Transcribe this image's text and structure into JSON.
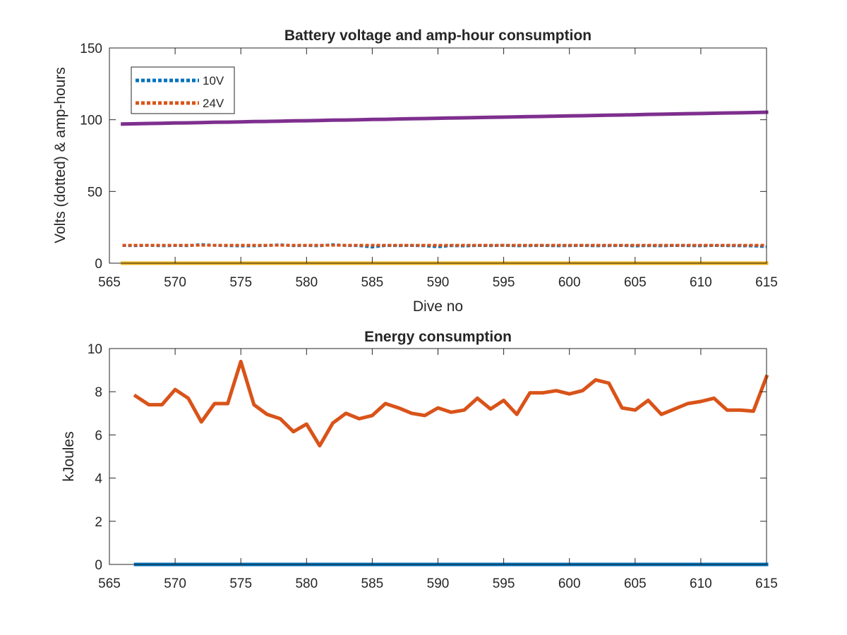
{
  "chart_data": [
    {
      "type": "line",
      "title": "Battery voltage and amp-hour consumption",
      "xlabel": "Dive no",
      "ylabel": "Volts (dotted) & amp-hours",
      "xlim": [
        565,
        615
      ],
      "ylim": [
        0,
        150
      ],
      "xticks": [
        "565",
        "570",
        "575",
        "580",
        "585",
        "590",
        "595",
        "600",
        "605",
        "610",
        "615"
      ],
      "yticks": [
        "0",
        "50",
        "100",
        "150"
      ],
      "grid": false,
      "legend": "top-left",
      "x": [
        566,
        567,
        568,
        569,
        570,
        571,
        572,
        573,
        574,
        575,
        576,
        577,
        578,
        579,
        580,
        581,
        582,
        583,
        584,
        585,
        586,
        587,
        588,
        589,
        590,
        591,
        592,
        593,
        594,
        595,
        596,
        597,
        598,
        599,
        600,
        601,
        602,
        603,
        604,
        605,
        606,
        607,
        608,
        609,
        610,
        611,
        612,
        613,
        614,
        615
      ],
      "series": [
        {
          "name": "10V",
          "style": "dotted",
          "color": "#0072BD",
          "values": [
            12.3,
            12.2,
            12.4,
            12.1,
            12.3,
            12.2,
            13.0,
            12.4,
            12.2,
            12.0,
            12.1,
            12.3,
            12.8,
            12.2,
            12.3,
            12.1,
            12.9,
            12.3,
            12.2,
            11.2,
            12.3,
            12.2,
            12.3,
            12.1,
            11.4,
            12.2,
            12.0,
            12.3,
            12.2,
            12.4,
            12.1,
            12.2,
            12.3,
            12.1,
            12.2,
            12.3,
            12.1,
            12.2,
            12.3,
            12.0,
            12.2,
            12.1,
            12.3,
            12.2,
            12.1,
            12.3,
            12.2,
            12.1,
            12.0,
            11.5
          ]
        },
        {
          "name": "24V",
          "style": "dotted",
          "color": "#D95319",
          "values": [
            12.5,
            12.5,
            12.5,
            12.5,
            12.5,
            12.5,
            12.5,
            12.5,
            12.5,
            12.5,
            12.5,
            12.5,
            12.5,
            12.5,
            12.5,
            12.5,
            12.5,
            12.5,
            12.5,
            12.5,
            12.5,
            12.5,
            12.5,
            12.5,
            12.5,
            12.5,
            12.5,
            12.5,
            12.5,
            12.5,
            12.5,
            12.5,
            12.5,
            12.5,
            12.5,
            12.5,
            12.5,
            12.5,
            12.5,
            12.5,
            12.5,
            12.5,
            12.5,
            12.5,
            12.5,
            12.5,
            12.5,
            12.5,
            12.5,
            12.5
          ]
        },
        {
          "style": "solid",
          "color": "#7E2F8E",
          "values": [
            97.0,
            97.2,
            97.4,
            97.5,
            97.7,
            97.8,
            98.0,
            98.2,
            98.3,
            98.5,
            98.7,
            98.8,
            99.0,
            99.2,
            99.3,
            99.5,
            99.7,
            99.8,
            100.0,
            100.2,
            100.3,
            100.5,
            100.7,
            100.8,
            101.0,
            101.2,
            101.3,
            101.5,
            101.7,
            101.8,
            102.0,
            102.2,
            102.3,
            102.5,
            102.7,
            102.8,
            103.0,
            103.2,
            103.3,
            103.5,
            103.7,
            103.8,
            104.0,
            104.2,
            104.3,
            104.5,
            104.7,
            104.8,
            105.0,
            105.2
          ]
        },
        {
          "style": "solid",
          "color": "#EDB120",
          "values": [
            0,
            0,
            0,
            0,
            0,
            0,
            0,
            0,
            0,
            0,
            0,
            0,
            0,
            0,
            0,
            0,
            0,
            0,
            0,
            0,
            0,
            0,
            0,
            0,
            0,
            0,
            0,
            0,
            0,
            0,
            0,
            0,
            0,
            0,
            0,
            0,
            0,
            0,
            0,
            0,
            0,
            0,
            0,
            0,
            0,
            0,
            0,
            0,
            0,
            0
          ]
        }
      ]
    },
    {
      "type": "line",
      "title": "Energy consumption",
      "xlabel": "",
      "ylabel": "kJoules",
      "xlim": [
        565,
        615
      ],
      "ylim": [
        0,
        10
      ],
      "xticks": [
        "565",
        "570",
        "575",
        "580",
        "585",
        "590",
        "595",
        "600",
        "605",
        "610",
        "615"
      ],
      "yticks": [
        "0",
        "2",
        "4",
        "6",
        "8",
        "10"
      ],
      "grid": false,
      "legend": "none",
      "series": [
        {
          "style": "solid",
          "color": "#0072BD",
          "x": [
            567,
            615
          ],
          "values": [
            0,
            0
          ]
        },
        {
          "style": "solid",
          "color": "#D95319",
          "x": [
            567,
            568,
            569,
            570,
            571,
            572,
            573,
            574,
            575,
            576,
            577,
            578,
            579,
            580,
            581,
            582,
            583,
            584,
            585,
            586,
            587,
            588,
            589,
            590,
            591,
            592,
            593,
            594,
            595,
            596,
            597,
            598,
            599,
            600,
            601,
            602,
            603,
            604,
            605,
            606,
            607,
            608,
            609,
            610,
            611,
            612,
            613,
            614,
            615
          ],
          "values": [
            7.8,
            7.4,
            7.4,
            8.1,
            7.7,
            6.6,
            7.45,
            7.45,
            9.4,
            7.4,
            6.95,
            6.75,
            6.15,
            6.5,
            5.5,
            6.55,
            7.0,
            6.75,
            6.9,
            7.45,
            7.25,
            7.0,
            6.9,
            7.25,
            7.05,
            7.15,
            7.7,
            7.2,
            7.6,
            6.95,
            7.95,
            7.95,
            8.05,
            7.9,
            8.05,
            8.55,
            8.4,
            7.25,
            7.15,
            7.6,
            6.95,
            7.2,
            7.45,
            7.55,
            7.7,
            7.15,
            7.15,
            7.1,
            8.7
          ]
        }
      ]
    }
  ]
}
